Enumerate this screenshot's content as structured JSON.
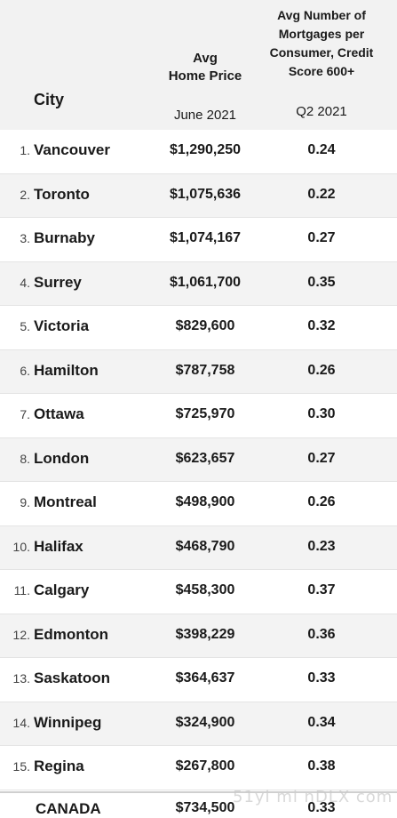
{
  "header": {
    "city_label": "City",
    "price_label": "Avg\nHome Price",
    "price_period": "June 2021",
    "mortgage_label": "Avg Number of Mortgages per Consumer, Credit Score 600+",
    "mortgage_period": "Q2 2021"
  },
  "rows": [
    {
      "rank": "1.",
      "city": "Vancouver",
      "price": "$1,290,250",
      "mortgages": "0.24"
    },
    {
      "rank": "2.",
      "city": "Toronto",
      "price": "$1,075,636",
      "mortgages": "0.22"
    },
    {
      "rank": "3.",
      "city": "Burnaby",
      "price": "$1,074,167",
      "mortgages": "0.27"
    },
    {
      "rank": "4.",
      "city": "Surrey",
      "price": "$1,061,700",
      "mortgages": "0.35"
    },
    {
      "rank": "5.",
      "city": "Victoria",
      "price": "$829,600",
      "mortgages": "0.32"
    },
    {
      "rank": "6.",
      "city": "Hamilton",
      "price": "$787,758",
      "mortgages": "0.26"
    },
    {
      "rank": "7.",
      "city": "Ottawa",
      "price": "$725,970",
      "mortgages": "0.30"
    },
    {
      "rank": "8.",
      "city": "London",
      "price": "$623,657",
      "mortgages": "0.27"
    },
    {
      "rank": "9.",
      "city": "Montreal",
      "price": "$498,900",
      "mortgages": "0.26"
    },
    {
      "rank": "10.",
      "city": "Halifax",
      "price": "$468,790",
      "mortgages": "0.23"
    },
    {
      "rank": "11.",
      "city": "Calgary",
      "price": "$458,300",
      "mortgages": "0.37"
    },
    {
      "rank": "12.",
      "city": "Edmonton",
      "price": "$398,229",
      "mortgages": "0.36"
    },
    {
      "rank": "13.",
      "city": "Saskatoon",
      "price": "$364,637",
      "mortgages": "0.33"
    },
    {
      "rank": "14.",
      "city": "Winnipeg",
      "price": "$324,900",
      "mortgages": "0.34"
    },
    {
      "rank": "15.",
      "city": "Regina",
      "price": "$267,800",
      "mortgages": "0.38"
    }
  ],
  "total": {
    "city": "CANADA",
    "price": "$734,500",
    "mortgages": "0.33"
  },
  "watermark": "51yi mi nDLX com"
}
